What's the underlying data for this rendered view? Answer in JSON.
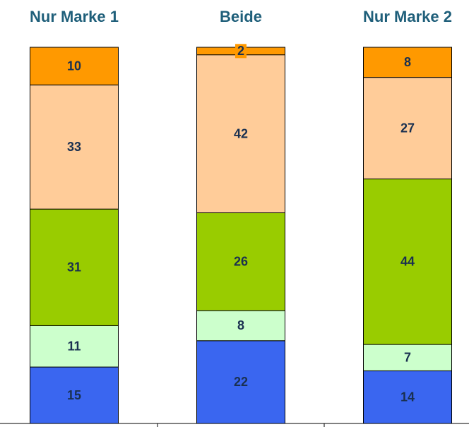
{
  "chart_data": {
    "type": "bar",
    "stacked": true,
    "categories": [
      "Nur Marke 1",
      "Beide",
      "Nur Marke 2"
    ],
    "series": [
      {
        "color": "#3a66f0",
        "values": [
          15,
          22,
          14
        ]
      },
      {
        "color": "#ccffcc",
        "values": [
          11,
          8,
          7
        ]
      },
      {
        "color": "#99cc00",
        "values": [
          31,
          26,
          44
        ]
      },
      {
        "color": "#ffcc99",
        "values": [
          33,
          42,
          27
        ]
      },
      {
        "color": "#ff9900",
        "values": [
          10,
          2,
          8
        ]
      }
    ],
    "ylim": [
      0,
      100
    ]
  }
}
